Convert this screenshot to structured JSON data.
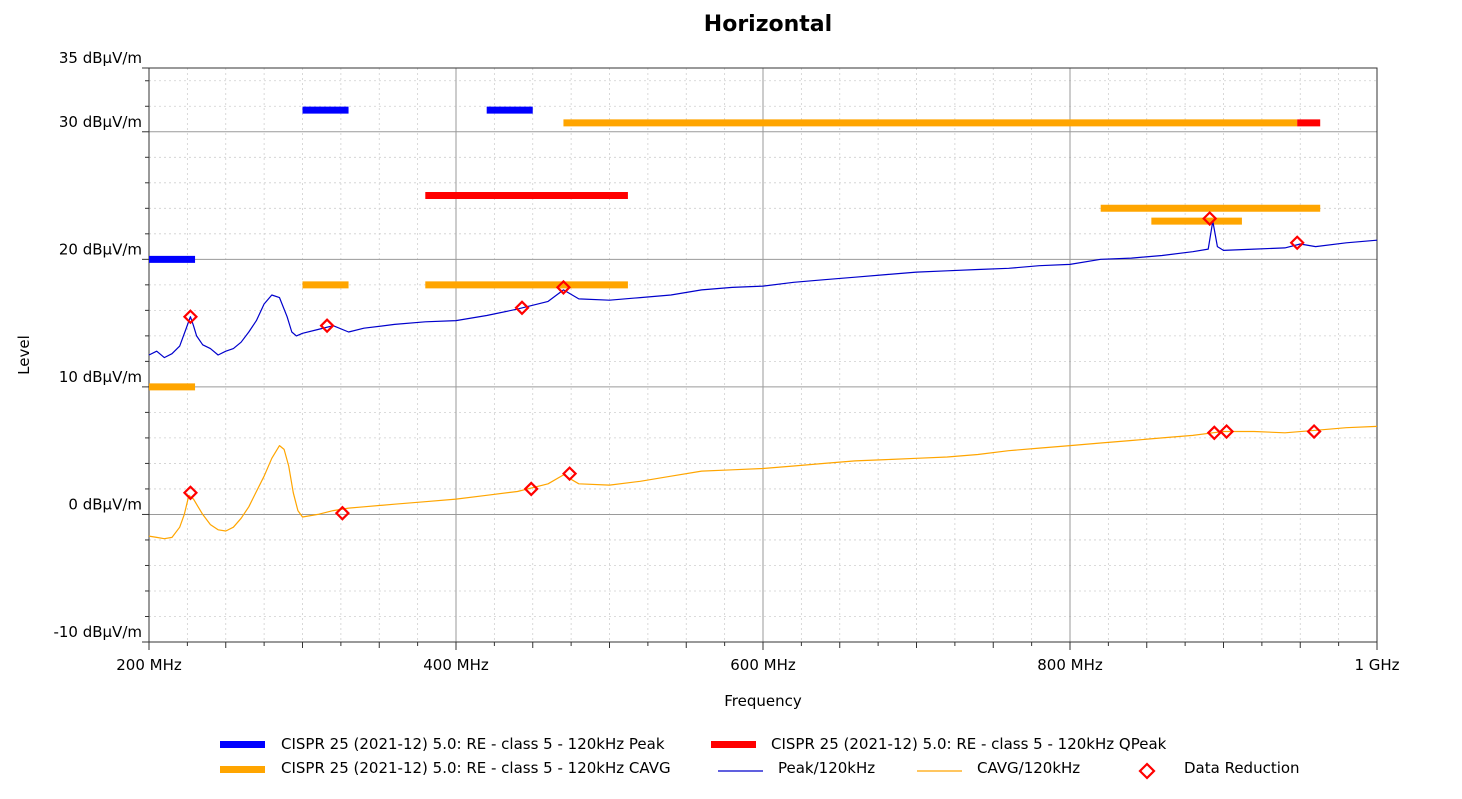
{
  "chart_data": {
    "type": "line",
    "title": "Horizontal",
    "xlabel": "Frequency",
    "ylabel": "Level",
    "x_unit": "MHz",
    "xlim": [
      200,
      1000
    ],
    "ylim": [
      -10,
      35
    ],
    "x_ticks": [
      {
        "value": 200,
        "label": "200 MHz"
      },
      {
        "value": 400,
        "label": "400 MHz"
      },
      {
        "value": 600,
        "label": "600 MHz"
      },
      {
        "value": 800,
        "label": "800 MHz"
      },
      {
        "value": 1000,
        "label": "1 GHz"
      }
    ],
    "y_ticks": [
      {
        "value": 35,
        "label": "35 dBµV/m"
      },
      {
        "value": 30,
        "label": "30 dBµV/m"
      },
      {
        "value": 20,
        "label": "20 dBµV/m"
      },
      {
        "value": 10,
        "label": "10 dBµV/m"
      },
      {
        "value": 0,
        "label": "0 dBµV/m"
      },
      {
        "value": -10,
        "label": "-10 dBµV/m"
      }
    ],
    "grid": true,
    "legend_position": "bottom",
    "colors": {
      "peak_limit": "#0000ff",
      "qpeak_limit": "#ff0000",
      "cavg_limit": "#ffa500",
      "peak_trace": "#0000cc",
      "cavg_trace": "#ffa500",
      "marker": "#ff0000"
    },
    "limit_lines": {
      "peak": {
        "name": "CISPR 25 (2021-12) 5.0: RE - class 5 - 120kHz Peak",
        "segments": [
          [
            200,
            230,
            20
          ],
          [
            300,
            330,
            31.7
          ],
          [
            420,
            450,
            31.7
          ]
        ]
      },
      "qpeak": {
        "name": "CISPR 25 (2021-12) 5.0: RE - class 5 - 120kHz QPeak",
        "segments": [
          [
            380,
            512,
            25
          ],
          [
            948,
            963,
            30.7
          ]
        ]
      },
      "cavg": {
        "name": "CISPR 25 (2021-12) 5.0: RE - class 5 - 120kHz CAVG",
        "segments": [
          [
            200,
            230,
            10
          ],
          [
            300,
            330,
            18
          ],
          [
            380,
            512,
            18
          ],
          [
            470,
            948,
            30.7
          ],
          [
            820,
            963,
            24
          ],
          [
            853,
            912,
            23
          ]
        ]
      }
    },
    "series": [
      {
        "name": "Peak/120kHz",
        "x": [
          200,
          205,
          210,
          215,
          220,
          224,
          227,
          229,
          231,
          235,
          240,
          245,
          250,
          255,
          260,
          265,
          270,
          275,
          280,
          285,
          290,
          293,
          296,
          300,
          310,
          320,
          330,
          340,
          360,
          380,
          400,
          420,
          440,
          460,
          470,
          480,
          500,
          520,
          540,
          560,
          580,
          600,
          620,
          640,
          660,
          680,
          700,
          720,
          740,
          760,
          780,
          800,
          820,
          840,
          860,
          880,
          890,
          893,
          896,
          900,
          920,
          940,
          950,
          960,
          980,
          1000
        ],
        "y": [
          12.5,
          12.8,
          12.3,
          12.6,
          13.2,
          14.5,
          15.5,
          14.8,
          14.0,
          13.3,
          13.0,
          12.5,
          12.8,
          13.0,
          13.5,
          14.3,
          15.2,
          16.5,
          17.2,
          17.0,
          15.5,
          14.3,
          14.0,
          14.2,
          14.5,
          14.8,
          14.3,
          14.6,
          14.9,
          15.1,
          15.2,
          15.6,
          16.1,
          16.7,
          17.6,
          16.9,
          16.8,
          17.0,
          17.2,
          17.6,
          17.8,
          17.9,
          18.2,
          18.4,
          18.6,
          18.8,
          19.0,
          19.1,
          19.2,
          19.3,
          19.5,
          19.6,
          20.0,
          20.1,
          20.3,
          20.6,
          20.8,
          23.0,
          21.0,
          20.7,
          20.8,
          20.9,
          21.2,
          21.0,
          21.3,
          21.5
        ]
      },
      {
        "name": "CAVG/120kHz",
        "x": [
          200,
          205,
          210,
          215,
          220,
          223,
          226,
          229,
          232,
          235,
          240,
          245,
          250,
          255,
          260,
          265,
          270,
          275,
          280,
          285,
          288,
          291,
          294,
          297,
          300,
          310,
          320,
          330,
          340,
          360,
          380,
          400,
          420,
          440,
          460,
          470,
          480,
          500,
          520,
          540,
          560,
          580,
          600,
          620,
          640,
          660,
          680,
          700,
          720,
          740,
          760,
          780,
          800,
          820,
          840,
          860,
          880,
          893,
          900,
          920,
          940,
          960,
          980,
          1000
        ],
        "y": [
          -1.7,
          -1.8,
          -1.9,
          -1.8,
          -1.0,
          0.0,
          1.5,
          1.2,
          0.6,
          0.0,
          -0.8,
          -1.2,
          -1.3,
          -1.0,
          -0.3,
          0.6,
          1.8,
          3.0,
          4.4,
          5.4,
          5.1,
          3.8,
          1.7,
          0.3,
          -0.2,
          0.0,
          0.3,
          0.5,
          0.6,
          0.8,
          1.0,
          1.2,
          1.5,
          1.8,
          2.4,
          3.1,
          2.4,
          2.3,
          2.6,
          3.0,
          3.4,
          3.5,
          3.6,
          3.8,
          4.0,
          4.2,
          4.3,
          4.4,
          4.5,
          4.7,
          5.0,
          5.2,
          5.4,
          5.6,
          5.8,
          6.0,
          6.2,
          6.4,
          6.5,
          6.5,
          6.4,
          6.6,
          6.8,
          6.9
        ]
      }
    ],
    "data_reduction": {
      "name": "Data Reduction",
      "points": [
        [
          227,
          15.5
        ],
        [
          316,
          14.8
        ],
        [
          443,
          16.2
        ],
        [
          470,
          17.8
        ],
        [
          891,
          23.2
        ],
        [
          948,
          21.3
        ],
        [
          227,
          1.7
        ],
        [
          326,
          0.1
        ],
        [
          449,
          2.0
        ],
        [
          474,
          3.2
        ],
        [
          894,
          6.4
        ],
        [
          902,
          6.5
        ],
        [
          959,
          6.5
        ]
      ]
    }
  }
}
